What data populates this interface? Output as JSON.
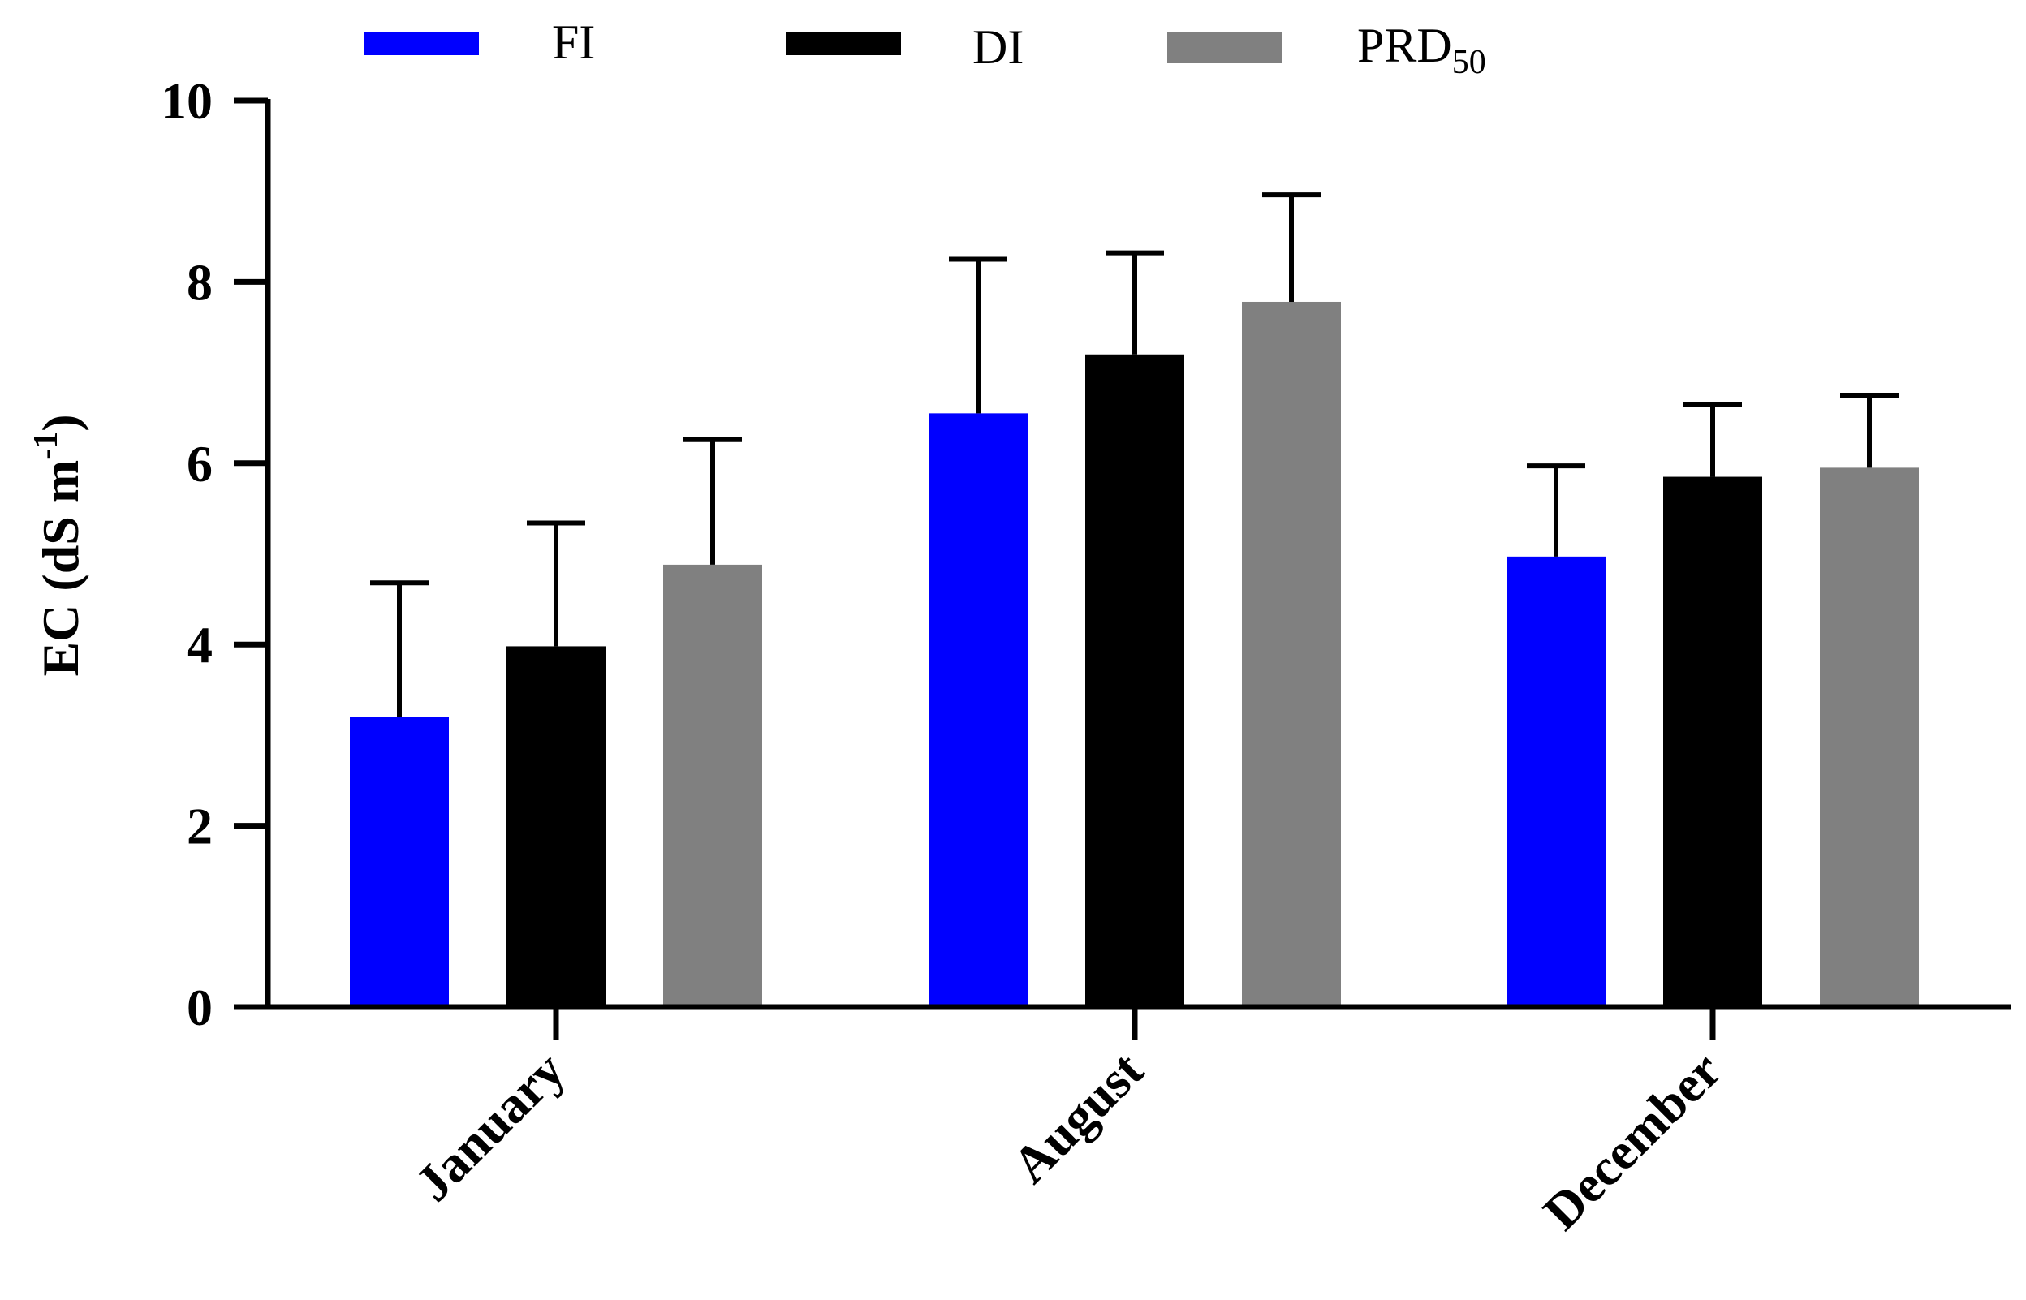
{
  "chart_data": {
    "type": "bar",
    "title": "",
    "xlabel": "",
    "ylabel": {
      "text": "EC (dS m",
      "sup": "-1",
      "close": ")"
    },
    "ylim": [
      0,
      10
    ],
    "yticks": [
      "0",
      "2",
      "4",
      "6",
      "8",
      "10"
    ],
    "ytick_values": [
      0,
      2,
      4,
      6,
      8,
      10
    ],
    "categories": [
      "January",
      "August",
      "December"
    ],
    "series": [
      {
        "name": "FI",
        "name_sub": "",
        "color": "#0000ff",
        "values": [
          3.2,
          6.55,
          4.97
        ],
        "errors": [
          1.48,
          1.7,
          1.0
        ]
      },
      {
        "name": "DI",
        "name_sub": "",
        "color": "#000000",
        "values": [
          3.98,
          7.2,
          5.85
        ],
        "errors": [
          1.36,
          1.12,
          0.8
        ]
      },
      {
        "name": "PRD",
        "name_sub": "50",
        "color": "#808080",
        "values": [
          4.88,
          7.78,
          5.95
        ],
        "errors": [
          1.38,
          1.18,
          0.8
        ]
      }
    ],
    "legend_position": "top",
    "grid": false
  }
}
